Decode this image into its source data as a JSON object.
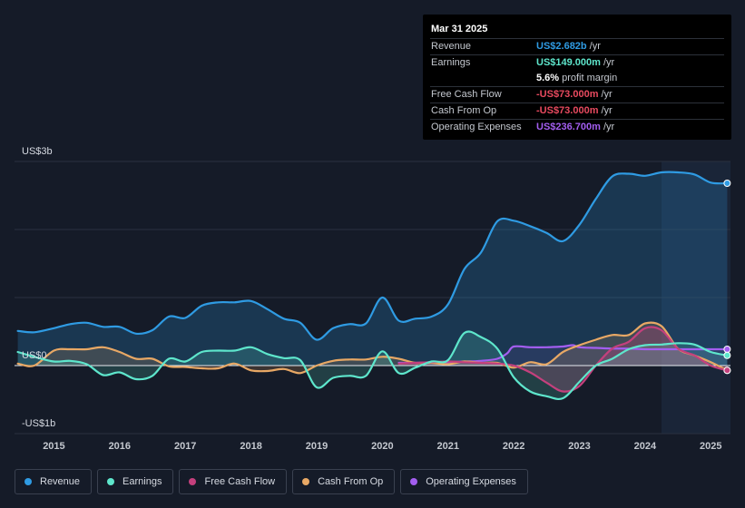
{
  "tooltip": {
    "date": "Mar 31 2025",
    "rows": [
      {
        "label": "Revenue",
        "value": "US$2.682b",
        "unit": "/yr",
        "color": "#2f9be3"
      },
      {
        "label": "Earnings",
        "value": "US$149.000m",
        "unit": "/yr",
        "color": "#5ee6cc"
      },
      {
        "label": "",
        "value": "5.6%",
        "unit": "profit margin",
        "color": "#ffffff"
      },
      {
        "label": "Free Cash Flow",
        "value": "-US$73.000m",
        "unit": "/yr",
        "color": "#e84a5f"
      },
      {
        "label": "Cash From Op",
        "value": "-US$73.000m",
        "unit": "/yr",
        "color": "#e84a5f"
      },
      {
        "label": "Operating Expenses",
        "value": "US$236.700m",
        "unit": "/yr",
        "color": "#a35ef0"
      }
    ]
  },
  "legend": [
    {
      "label": "Revenue",
      "color": "#2f9be3"
    },
    {
      "label": "Earnings",
      "color": "#5ee6cc"
    },
    {
      "label": "Free Cash Flow",
      "color": "#c4407d"
    },
    {
      "label": "Cash From Op",
      "color": "#e8a865"
    },
    {
      "label": "Operating Expenses",
      "color": "#a35ef0"
    }
  ],
  "colors": {
    "revenue": "#2f9be3",
    "earnings": "#5ee6cc",
    "fcf": "#c4407d",
    "cfo": "#e8a865",
    "opex": "#a35ef0"
  },
  "chart_data": {
    "type": "area",
    "title": "",
    "xlabel": "",
    "ylabel": "",
    "units": "US$ billions (annualized)",
    "y_tick_labels": [
      "US$3b",
      "US$0",
      "-US$1b"
    ],
    "ylim": [
      -1,
      3
    ],
    "xlim": [
      2014.4,
      2025.3
    ],
    "x_ticks": [
      2015,
      2016,
      2017,
      2018,
      2019,
      2020,
      2021,
      2022,
      2023,
      2024,
      2025
    ],
    "x_tick_labels": [
      "2015",
      "2016",
      "2017",
      "2018",
      "2019",
      "2020",
      "2021",
      "2022",
      "2023",
      "2024",
      "2025"
    ],
    "shaded_from": 2024.25,
    "series": [
      {
        "name": "Revenue",
        "key": "revenue",
        "x": [
          2014.45,
          2014.7,
          2015.0,
          2015.25,
          2015.5,
          2015.75,
          2016.0,
          2016.25,
          2016.5,
          2016.75,
          2017.0,
          2017.25,
          2017.5,
          2017.75,
          2018.0,
          2018.25,
          2018.5,
          2018.75,
          2019.0,
          2019.25,
          2019.5,
          2019.75,
          2020.0,
          2020.25,
          2020.5,
          2020.75,
          2021.0,
          2021.25,
          2021.5,
          2021.75,
          2022.0,
          2022.25,
          2022.5,
          2022.75,
          2023.0,
          2023.25,
          2023.5,
          2023.75,
          2024.0,
          2024.25,
          2024.5,
          2024.75,
          2025.0,
          2025.25
        ],
        "values": [
          0.51,
          0.49,
          0.55,
          0.61,
          0.63,
          0.57,
          0.57,
          0.47,
          0.52,
          0.72,
          0.7,
          0.88,
          0.93,
          0.93,
          0.95,
          0.83,
          0.69,
          0.63,
          0.38,
          0.55,
          0.61,
          0.62,
          1.0,
          0.66,
          0.69,
          0.72,
          0.9,
          1.42,
          1.66,
          2.12,
          2.13,
          2.05,
          1.95,
          1.83,
          2.07,
          2.45,
          2.78,
          2.82,
          2.79,
          2.84,
          2.84,
          2.81,
          2.69,
          2.68
        ]
      },
      {
        "name": "Earnings",
        "key": "earnings",
        "x": [
          2014.45,
          2014.7,
          2015.0,
          2015.25,
          2015.5,
          2015.75,
          2016.0,
          2016.25,
          2016.5,
          2016.75,
          2017.0,
          2017.25,
          2017.5,
          2017.75,
          2018.0,
          2018.25,
          2018.5,
          2018.75,
          2019.0,
          2019.25,
          2019.5,
          2019.75,
          2020.0,
          2020.25,
          2020.5,
          2020.75,
          2021.0,
          2021.25,
          2021.5,
          2021.75,
          2022.0,
          2022.25,
          2022.5,
          2022.75,
          2023.0,
          2023.25,
          2023.5,
          2023.75,
          2024.0,
          2024.25,
          2024.5,
          2024.75,
          2025.0,
          2025.25
        ],
        "values": [
          0.2,
          0.13,
          0.06,
          0.07,
          0.02,
          -0.14,
          -0.1,
          -0.2,
          -0.15,
          0.1,
          0.06,
          0.2,
          0.22,
          0.22,
          0.27,
          0.17,
          0.11,
          0.08,
          -0.32,
          -0.18,
          -0.15,
          -0.15,
          0.21,
          -0.11,
          -0.03,
          0.06,
          0.08,
          0.48,
          0.42,
          0.25,
          -0.17,
          -0.38,
          -0.45,
          -0.48,
          -0.24,
          0.0,
          0.1,
          0.24,
          0.3,
          0.31,
          0.33,
          0.31,
          0.2,
          0.15
        ]
      },
      {
        "name": "Free Cash Flow",
        "key": "fcf",
        "x": [
          2020.25,
          2020.5,
          2020.75,
          2021.0,
          2021.25,
          2021.5,
          2021.75,
          2022.0,
          2022.25,
          2022.5,
          2022.75,
          2023.0,
          2023.25,
          2023.5,
          2023.75,
          2024.0,
          2024.25,
          2024.5,
          2024.75,
          2025.0,
          2025.25
        ],
        "values": [
          0.03,
          0.04,
          0.05,
          0.06,
          0.05,
          0.04,
          0.03,
          0.0,
          -0.1,
          -0.25,
          -0.38,
          -0.3,
          0.0,
          0.25,
          0.35,
          0.55,
          0.52,
          0.25,
          0.15,
          0.0,
          -0.07
        ]
      },
      {
        "name": "Cash From Op",
        "key": "cfo",
        "x": [
          2014.45,
          2014.7,
          2015.0,
          2015.25,
          2015.5,
          2015.75,
          2016.0,
          2016.25,
          2016.5,
          2016.75,
          2017.0,
          2017.25,
          2017.5,
          2017.75,
          2018.0,
          2018.25,
          2018.5,
          2018.75,
          2019.0,
          2019.25,
          2019.5,
          2019.75,
          2020.0,
          2020.25,
          2020.5,
          2020.75,
          2021.0,
          2021.25,
          2021.5,
          2021.75,
          2022.0,
          2022.25,
          2022.5,
          2022.75,
          2023.0,
          2023.25,
          2023.5,
          2023.75,
          2024.0,
          2024.25,
          2024.5,
          2024.75,
          2025.0,
          2025.25
        ],
        "values": [
          0.03,
          0.0,
          0.22,
          0.24,
          0.24,
          0.27,
          0.2,
          0.1,
          0.1,
          -0.01,
          -0.02,
          -0.04,
          -0.04,
          0.03,
          -0.07,
          -0.08,
          -0.05,
          -0.11,
          0.0,
          0.07,
          0.09,
          0.09,
          0.13,
          0.1,
          0.04,
          0.04,
          0.02,
          0.06,
          0.04,
          0.04,
          -0.03,
          0.05,
          0.02,
          0.2,
          0.3,
          0.38,
          0.45,
          0.45,
          0.62,
          0.58,
          0.25,
          0.15,
          0.05,
          -0.07
        ]
      },
      {
        "name": "Operating Expenses",
        "key": "opex",
        "x": [
          2020.25,
          2020.5,
          2020.75,
          2021.0,
          2021.25,
          2021.5,
          2021.75,
          2021.9,
          2022.0,
          2022.25,
          2022.5,
          2022.75,
          2022.9,
          2023.0,
          2023.25,
          2023.5,
          2023.75,
          2024.0,
          2024.25,
          2024.5,
          2024.75,
          2025.0,
          2025.25
        ],
        "values": [
          0.04,
          0.04,
          0.05,
          0.05,
          0.06,
          0.07,
          0.1,
          0.18,
          0.28,
          0.27,
          0.27,
          0.28,
          0.3,
          0.27,
          0.26,
          0.25,
          0.25,
          0.24,
          0.24,
          0.24,
          0.24,
          0.24,
          0.24
        ]
      }
    ]
  }
}
